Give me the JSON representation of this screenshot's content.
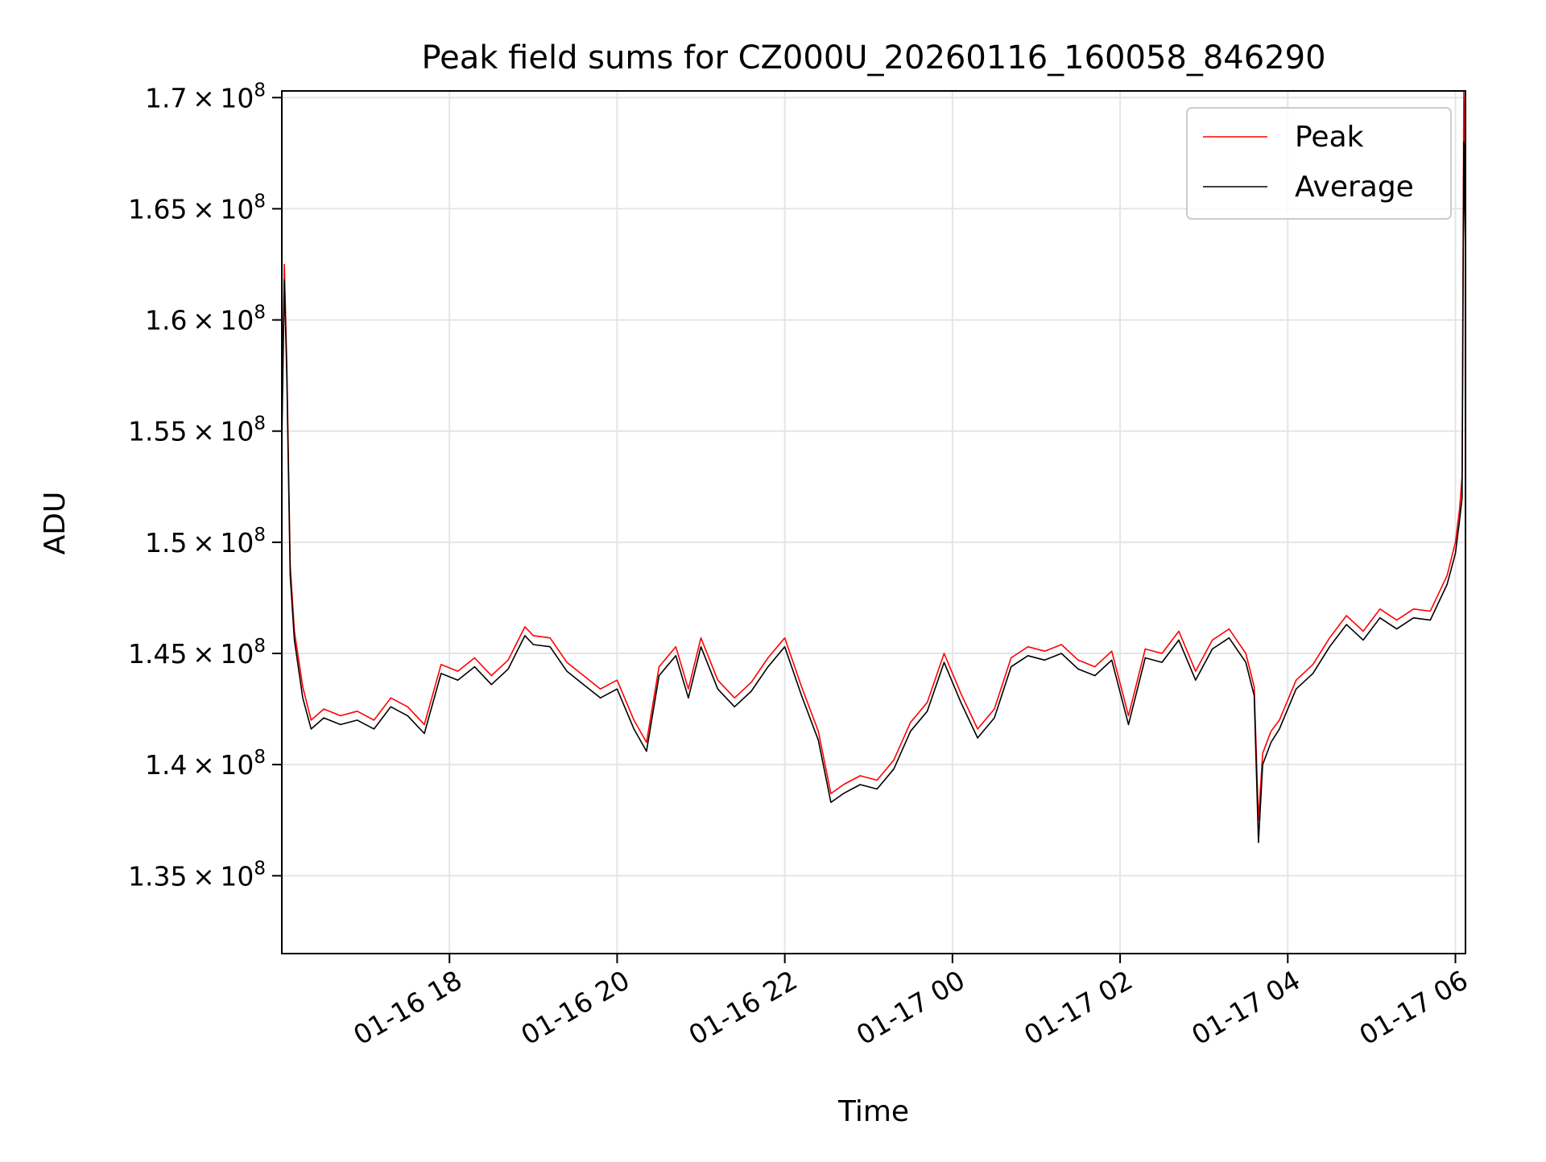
{
  "chart_data": {
    "type": "line",
    "title": "Peak field sums for CZ000U_20260116_160058_846290",
    "xlabel": "Time",
    "ylabel": "ADU",
    "legend_position": "top-right",
    "grid": true,
    "xlim_hours": [
      16.0,
      30.12
    ],
    "ylim": [
      131500000,
      170300000
    ],
    "x_ticks": [
      {
        "hour": 18,
        "label": "01-16 18"
      },
      {
        "hour": 20,
        "label": "01-16 20"
      },
      {
        "hour": 22,
        "label": "01-16 22"
      },
      {
        "hour": 24,
        "label": "01-17 00"
      },
      {
        "hour": 26,
        "label": "01-17 02"
      },
      {
        "hour": 28,
        "label": "01-17 04"
      },
      {
        "hour": 30,
        "label": "01-17 06"
      }
    ],
    "y_ticks": [
      {
        "value": 135000000,
        "mantissa": "1.35",
        "exponent": "8"
      },
      {
        "value": 140000000,
        "mantissa": "1.4",
        "exponent": "8"
      },
      {
        "value": 145000000,
        "mantissa": "1.45",
        "exponent": "8"
      },
      {
        "value": 150000000,
        "mantissa": "1.5",
        "exponent": "8"
      },
      {
        "value": 155000000,
        "mantissa": "1.55",
        "exponent": "8"
      },
      {
        "value": 160000000,
        "mantissa": "1.6",
        "exponent": "8"
      },
      {
        "value": 165000000,
        "mantissa": "1.65",
        "exponent": "8"
      },
      {
        "value": 170000000,
        "mantissa": "1.7",
        "exponent": "8"
      }
    ],
    "times_label": "hour since 01-16 00:00",
    "series": [
      {
        "name": "Peak",
        "color": "#ff0000",
        "x": [
          16.0,
          16.03,
          16.06,
          16.1,
          16.15,
          16.25,
          16.35,
          16.5,
          16.7,
          16.9,
          17.1,
          17.3,
          17.5,
          17.7,
          17.9,
          18.1,
          18.3,
          18.5,
          18.7,
          18.9,
          19.0,
          19.2,
          19.4,
          19.6,
          19.8,
          20.0,
          20.2,
          20.35,
          20.5,
          20.7,
          20.85,
          21.0,
          21.2,
          21.4,
          21.6,
          21.8,
          22.0,
          22.2,
          22.4,
          22.55,
          22.7,
          22.9,
          23.1,
          23.3,
          23.5,
          23.7,
          23.9,
          24.1,
          24.3,
          24.5,
          24.7,
          24.9,
          25.1,
          25.3,
          25.5,
          25.7,
          25.9,
          26.1,
          26.3,
          26.5,
          26.7,
          26.9,
          27.1,
          27.3,
          27.5,
          27.6,
          27.65,
          27.7,
          27.8,
          27.9,
          28.1,
          28.3,
          28.5,
          28.7,
          28.9,
          29.1,
          29.3,
          29.5,
          29.7,
          29.9,
          30.0,
          30.05,
          30.08,
          30.1,
          30.12
        ],
        "values": [
          155000000,
          162500000,
          158000000,
          149000000,
          146000000,
          143500000,
          142000000,
          142500000,
          142200000,
          142400000,
          142000000,
          143000000,
          142600000,
          141800000,
          144500000,
          144200000,
          144800000,
          144000000,
          144700000,
          146200000,
          145800000,
          145700000,
          144600000,
          144000000,
          143400000,
          143800000,
          142000000,
          141000000,
          144400000,
          145300000,
          143400000,
          145700000,
          143800000,
          143000000,
          143700000,
          144800000,
          145700000,
          143500000,
          141500000,
          138700000,
          139100000,
          139500000,
          139300000,
          140200000,
          141900000,
          142800000,
          145000000,
          143200000,
          141600000,
          142500000,
          144800000,
          145300000,
          145100000,
          145400000,
          144700000,
          144400000,
          145100000,
          142200000,
          145200000,
          145000000,
          146000000,
          144200000,
          145600000,
          146100000,
          145000000,
          143500000,
          137500000,
          140500000,
          141500000,
          142000000,
          143800000,
          144500000,
          145700000,
          146700000,
          146000000,
          147000000,
          146500000,
          147000000,
          146900000,
          148500000,
          150000000,
          151500000,
          153000000,
          170300000,
          165500000
        ]
      },
      {
        "name": "Average",
        "color": "#000000",
        "x": [
          16.0,
          16.03,
          16.06,
          16.1,
          16.15,
          16.25,
          16.35,
          16.5,
          16.7,
          16.9,
          17.1,
          17.3,
          17.5,
          17.7,
          17.9,
          18.1,
          18.3,
          18.5,
          18.7,
          18.9,
          19.0,
          19.2,
          19.4,
          19.6,
          19.8,
          20.0,
          20.2,
          20.35,
          20.5,
          20.7,
          20.85,
          21.0,
          21.2,
          21.4,
          21.6,
          21.8,
          22.0,
          22.2,
          22.4,
          22.55,
          22.7,
          22.9,
          23.1,
          23.3,
          23.5,
          23.7,
          23.9,
          24.1,
          24.3,
          24.5,
          24.7,
          24.9,
          25.1,
          25.3,
          25.5,
          25.7,
          25.9,
          26.1,
          26.3,
          26.5,
          26.7,
          26.9,
          27.1,
          27.3,
          27.5,
          27.6,
          27.65,
          27.7,
          27.8,
          27.9,
          28.1,
          28.3,
          28.5,
          28.7,
          28.9,
          29.1,
          29.3,
          29.5,
          29.7,
          29.9,
          30.0,
          30.05,
          30.08,
          30.1,
          30.12
        ],
        "values": [
          154500000,
          161800000,
          157500000,
          148500000,
          145600000,
          143000000,
          141600000,
          142100000,
          141800000,
          142000000,
          141600000,
          142600000,
          142200000,
          141400000,
          144100000,
          143800000,
          144400000,
          143600000,
          144300000,
          145800000,
          145400000,
          145300000,
          144200000,
          143600000,
          143000000,
          143400000,
          141600000,
          140600000,
          144000000,
          144900000,
          143000000,
          145300000,
          143400000,
          142600000,
          143300000,
          144400000,
          145300000,
          143100000,
          141100000,
          138300000,
          138700000,
          139100000,
          138900000,
          139800000,
          141500000,
          142400000,
          144600000,
          142800000,
          141200000,
          142100000,
          144400000,
          144900000,
          144700000,
          145000000,
          144300000,
          144000000,
          144700000,
          141800000,
          144800000,
          144600000,
          145600000,
          143800000,
          145200000,
          145700000,
          144600000,
          143100000,
          136500000,
          140000000,
          141000000,
          141600000,
          143400000,
          144100000,
          145300000,
          146300000,
          145600000,
          146600000,
          146100000,
          146600000,
          146500000,
          148100000,
          149500000,
          151000000,
          152000000,
          168000000,
          163000000
        ]
      }
    ]
  }
}
